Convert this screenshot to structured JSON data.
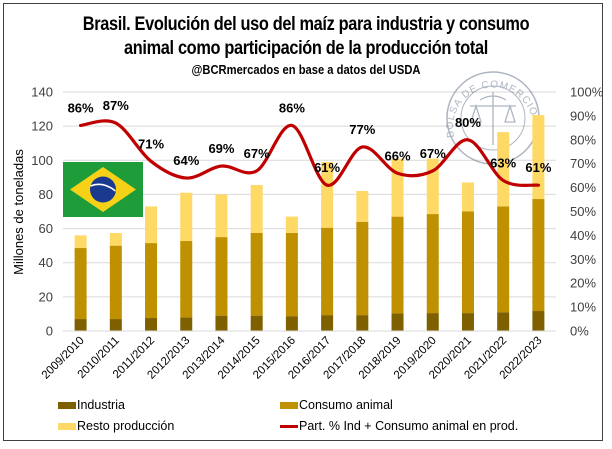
{
  "chart_data": {
    "type": "bar",
    "subtype": "stacked-bar-with-line-secondary-axis",
    "title_line1": "Brasil. Evolución del uso del maíz para industria y consumo",
    "title_line2": "animal como participación de la producción total",
    "subtitle": "@BCRmercados en base a datos del USDA",
    "ylabel": "Millones de toneladas",
    "xlabel": "",
    "ylim": [
      0,
      140
    ],
    "yticks": [
      "0",
      "20",
      "40",
      "60",
      "80",
      "100",
      "120",
      "140"
    ],
    "y2lim": [
      0,
      100
    ],
    "y2ticks": [
      "0%",
      "10%",
      "20%",
      "30%",
      "40%",
      "50%",
      "60%",
      "70%",
      "80%",
      "90%",
      "100%"
    ],
    "grid": true,
    "legend_position": "bottom",
    "categories": [
      "2009/2010",
      "2010/2011",
      "2011/2012",
      "2012/2013",
      "2013/2014",
      "2014/2015",
      "2015/2016",
      "2016/2017",
      "2017/2018",
      "2018/2019",
      "2019/2020",
      "2020/2021",
      "2021/2022",
      "2022/2023"
    ],
    "series": [
      {
        "name": "Industria",
        "type": "bar",
        "axis": "left",
        "color": "#7f6000",
        "values": [
          7.0,
          7.0,
          7.6,
          8.0,
          9.0,
          9.0,
          8.7,
          9.3,
          9.3,
          10.3,
          10.5,
          10.5,
          11.0,
          11.7
        ]
      },
      {
        "name": "Consumo animal",
        "type": "bar",
        "axis": "left",
        "color": "#bf9000",
        "values": [
          41.6,
          43.0,
          43.9,
          44.7,
          46.0,
          48.4,
          48.8,
          51.2,
          54.7,
          56.7,
          58.0,
          59.5,
          62.0,
          65.6
        ]
      },
      {
        "name": "Resto producción",
        "type": "bar",
        "axis": "left",
        "color": "#ffd966",
        "values": [
          7.4,
          7.4,
          21.5,
          28.3,
          25.0,
          28.1,
          9.5,
          38.5,
          18.0,
          34.0,
          32.5,
          17.0,
          43.5,
          49.2
        ]
      },
      {
        "name": "Part. % Ind + Consumo animal en prod.",
        "type": "line",
        "axis": "right",
        "color": "#c00000",
        "values": [
          86,
          87,
          71,
          64,
          69,
          67,
          86,
          61,
          77,
          66,
          67,
          80,
          63,
          61
        ],
        "data_labels": [
          "86%",
          "87%",
          "71%",
          "64%",
          "69%",
          "67%",
          "86%",
          "61%",
          "77%",
          "66%",
          "67%",
          "80%",
          "63%",
          "61%"
        ]
      }
    ]
  },
  "decorations": {
    "flag": "brazil-flag",
    "watermark_text": "BOLSA DE COMERCIO DE ROSARIO"
  }
}
